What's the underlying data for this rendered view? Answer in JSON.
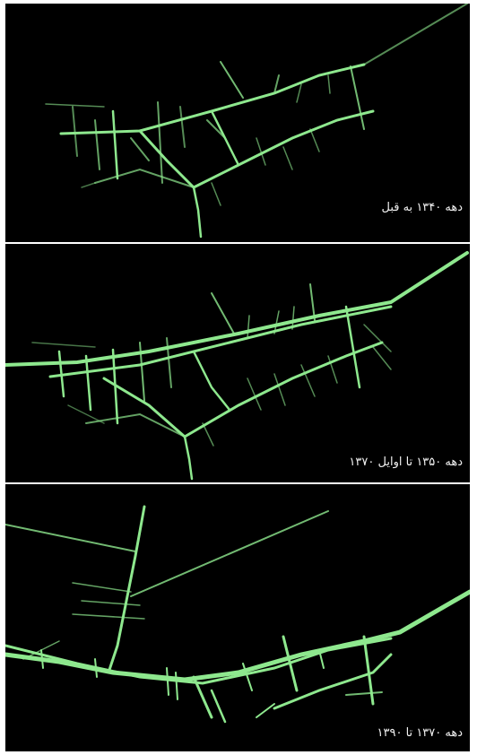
{
  "panels": [
    {
      "id": "p1",
      "caption": "دهه ۱۳۴۰ به قبل",
      "line_color": "#8ee88e"
    },
    {
      "id": "p2",
      "caption": "دهه ۱۳۵۰ تا اوایل ۱۳۷۰",
      "line_color": "#8ee88e"
    },
    {
      "id": "p3",
      "caption": "دهه ۱۳۷۰ تا ۱۳۹۰",
      "line_color": "#8ee88e"
    }
  ]
}
